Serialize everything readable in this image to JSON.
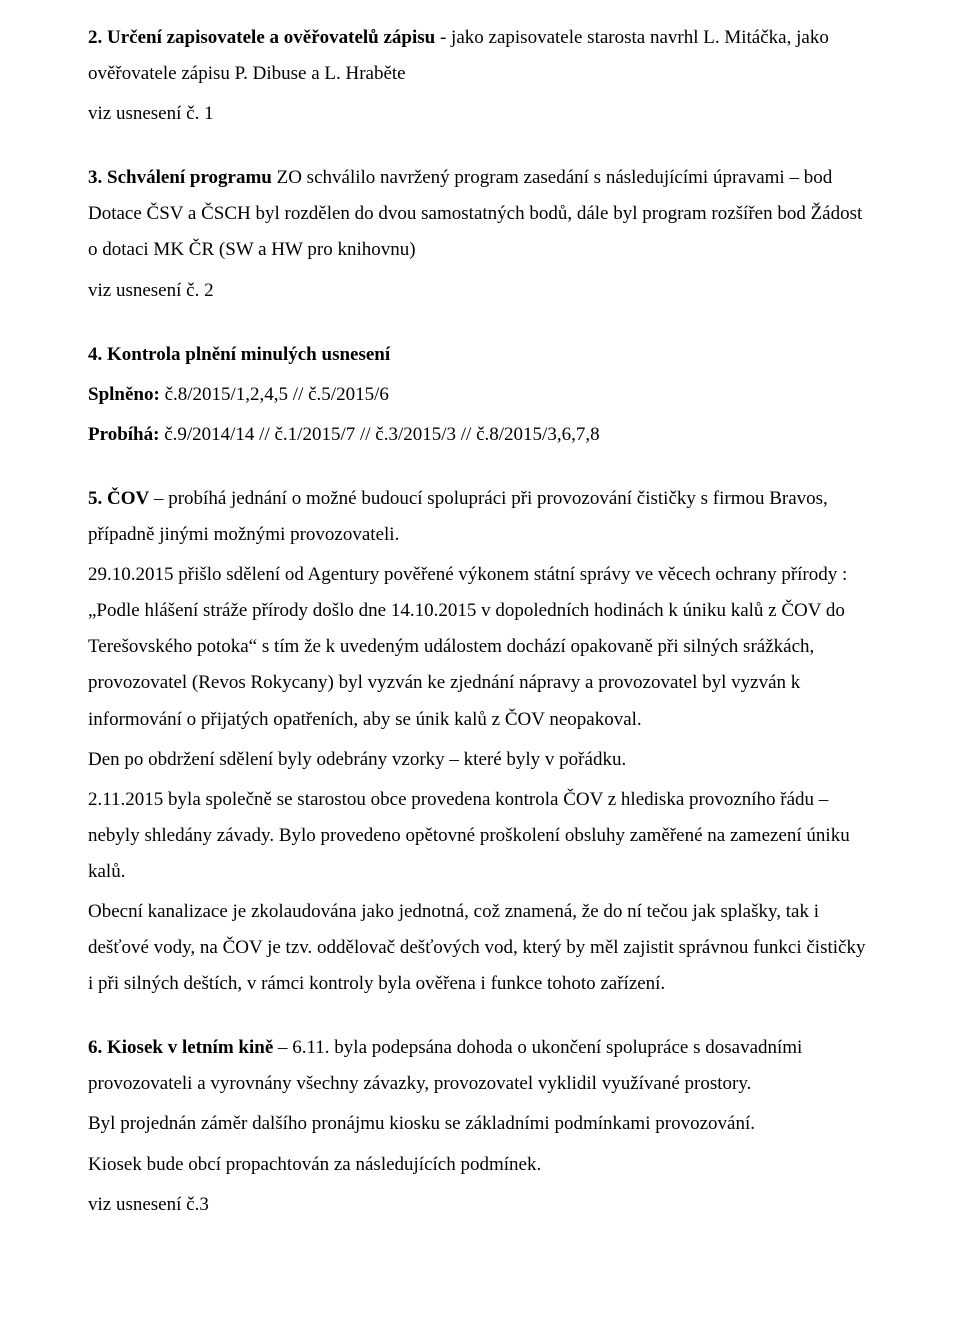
{
  "s2": {
    "lead_bold": "2. Určení zapisovatele a ověřovatelů zápisu",
    "lead_rest": " - jako zapisovatele starosta navrhl L. Mitáčka, jako ověřovatele zápisu P. Dibuse a L. Hraběte",
    "ref": "viz usnesení č. 1"
  },
  "s3": {
    "lead_bold": "3. Schválení programu",
    "lead_rest": " ZO schválilo navržený program zasedání s následujícími úpravami – bod Dotace ČSV a ČSCH byl rozdělen do dvou samostatných bodů, dále byl program rozšířen bod Žádost o dotaci MK ČR (SW a HW pro knihovnu)",
    "ref": "viz usnesení č. 2"
  },
  "s4": {
    "title": "4. Kontrola plnění minulých usnesení",
    "splneno_label": "Splněno:  ",
    "splneno_val": "č.8/2015/1,2,4,5 // č.5/2015/6",
    "probiha_label": "Probíhá: ",
    "probiha_val": "č.9/2014/14 // č.1/2015/7 // č.3/2015/3 // č.8/2015/3,6,7,8"
  },
  "s5": {
    "lead_bold": "5. ČOV",
    "lead_rest": " – probíhá jednání o možné budoucí spolupráci při provozování čističky s firmou Bravos, případně jinými možnými provozovateli.",
    "p2": "29.10.2015 přišlo sdělení od Agentury pověřené výkonem státní správy ve věcech ochrany přírody : „Podle hlášení stráže přírody došlo dne 14.10.2015 v dopoledních hodinách k úniku kalů z ČOV do Terešovského potoka“ s tím že k uvedeným událostem dochází opakovaně při silných srážkách, provozovatel (Revos Rokycany) byl vyzván ke zjednání nápravy a provozovatel byl vyzván k informování o přijatých opatřeních, aby se únik kalů z ČOV neopakoval.",
    "p3": "Den po obdržení sdělení byly odebrány vzorky – které byly v pořádku.",
    "p4": "2.11.2015 byla společně se starostou obce provedena kontrola ČOV z hlediska provozního řádu – nebyly shledány závady. Bylo provedeno opětovné proškolení obsluhy zaměřené na zamezení úniku kalů.",
    "p5": "Obecní kanalizace je zkolaudována jako jednotná, což znamená, že do ní tečou jak splašky, tak i dešťové vody, na ČOV je tzv. oddělovač dešťových vod, který by měl zajistit správnou funkci čističky i při silných deštích, v rámci kontroly byla ověřena i funkce tohoto zařízení."
  },
  "s6": {
    "lead_bold": "6. Kiosek v letním kině",
    "lead_rest": " – 6.11. byla podepsána dohoda o ukončení spolupráce s dosavadními provozovateli a vyrovnány všechny závazky, provozovatel vyklidil využívané prostory.",
    "p2": " Byl projednán záměr dalšího pronájmu kiosku se základními podmínkami provozování.",
    "p3": " Kiosek bude obcí propachtován za následujících podmínek.",
    "ref": "viz usnesení č.3"
  }
}
